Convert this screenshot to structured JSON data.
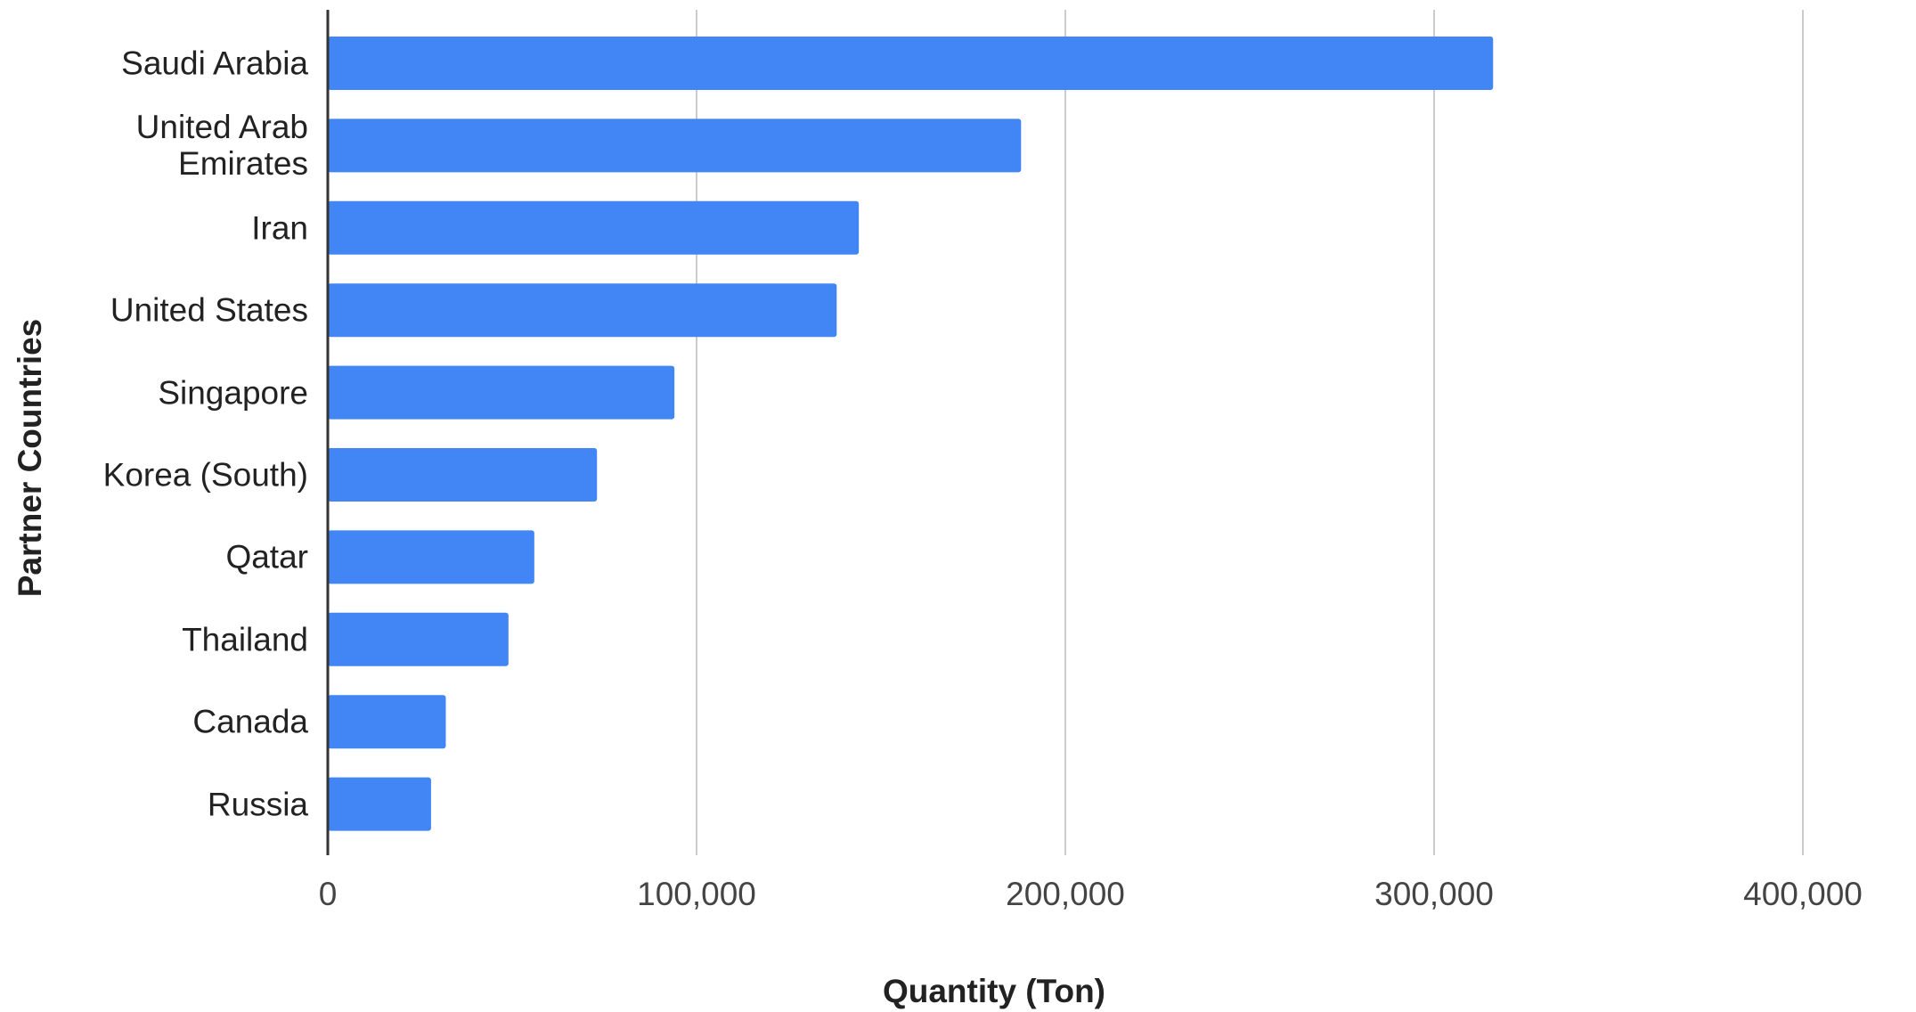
{
  "chart_data": {
    "type": "hbar",
    "x_label": "Quantity (Ton)",
    "y_label": "Partner Countries",
    "categories": [
      "Saudi Arabia",
      "United Arab Emirates",
      "Iran",
      "United States",
      "Singapore",
      "Korea (South)",
      "Qatar",
      "Thailand",
      "Canada",
      "Russia"
    ],
    "values": [
      316000,
      188000,
      144000,
      138000,
      94000,
      73000,
      56000,
      49000,
      32000,
      28000
    ],
    "color": "#4285f4",
    "xlim": [
      0,
      400000
    ],
    "xticks": [
      0,
      {
        "value": 100000,
        "label": "100,000"
      },
      {
        "value": 200000,
        "label": "200,000"
      },
      {
        "value": 300000,
        "label": "300,000"
      },
      {
        "value": 400000,
        "label": "400,000"
      }
    ],
    "grid": true
  }
}
